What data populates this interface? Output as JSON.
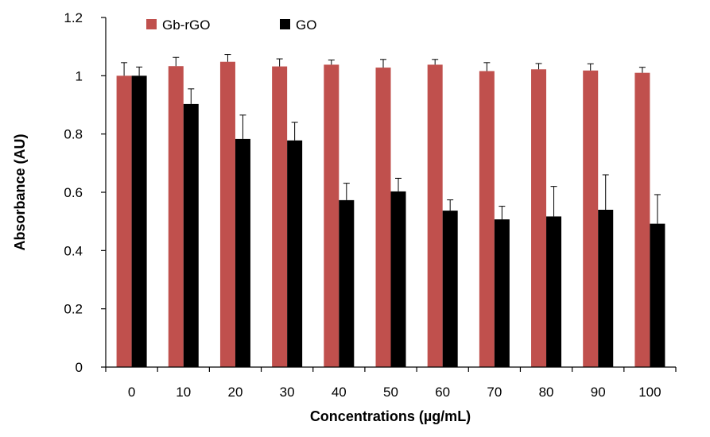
{
  "chart_data": {
    "type": "bar",
    "title": "",
    "xlabel": "Concentrations (µg/mL)",
    "ylabel": "Absorbance (AU)",
    "ylim": [
      0,
      1.2
    ],
    "yticks": [
      "0",
      "0.2",
      "0.4",
      "0.6",
      "0.8",
      "1",
      "1.2"
    ],
    "categories": [
      "0",
      "10",
      "20",
      "30",
      "40",
      "50",
      "60",
      "70",
      "80",
      "90",
      "100"
    ],
    "grid": false,
    "legend_position": "top-left",
    "error_bars": "positive",
    "series": [
      {
        "name": "Gb-rGO",
        "color": "#c0504d",
        "values": [
          1.0,
          1.033,
          1.048,
          1.032,
          1.038,
          1.028,
          1.038,
          1.016,
          1.022,
          1.018,
          1.01
        ],
        "errors": [
          0.045,
          0.03,
          0.025,
          0.026,
          0.016,
          0.028,
          0.018,
          0.029,
          0.02,
          0.023,
          0.019
        ]
      },
      {
        "name": "GO",
        "color": "#000000",
        "values": [
          1.0,
          0.903,
          0.783,
          0.778,
          0.573,
          0.603,
          0.537,
          0.507,
          0.517,
          0.54,
          0.492
        ],
        "errors": [
          0.03,
          0.052,
          0.082,
          0.062,
          0.058,
          0.045,
          0.037,
          0.045,
          0.103,
          0.12,
          0.1
        ]
      }
    ]
  }
}
